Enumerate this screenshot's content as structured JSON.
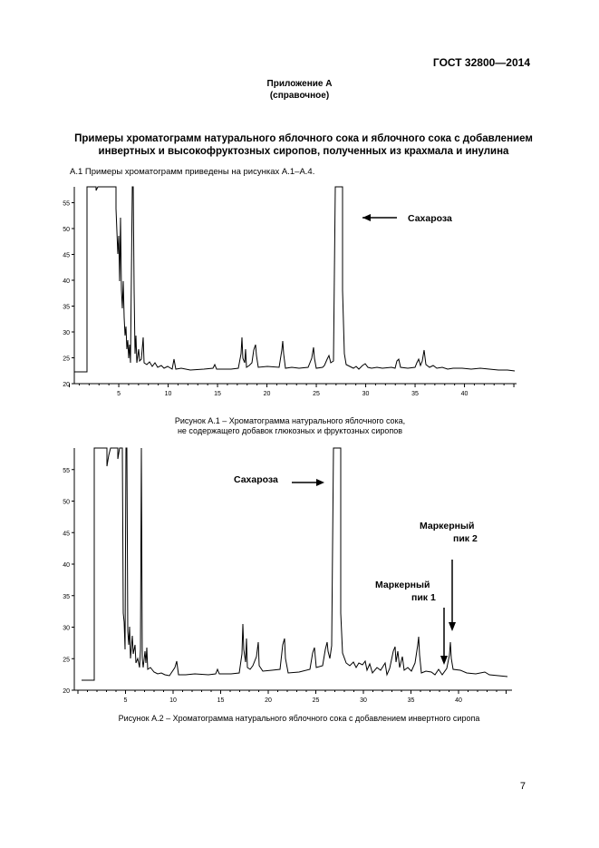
{
  "header": {
    "standard": "ГОСТ 32800—2014"
  },
  "appendix": {
    "line1": "Приложение А",
    "line2": "(справочное)"
  },
  "title": {
    "line1": "Примеры хроматограмм натурального яблочного сока и яблочного сока с добавлением",
    "line2": "инвертных и высокофруктозных сиропов, полученных из крахмала и инулина"
  },
  "intro": "А.1 Примеры хроматограмм приведены на рисунках А.1–А.4.",
  "figure1": {
    "caption_line1": "Рисунок А.1 – Хроматограмма  натурального яблочного сока,",
    "caption_line2": "не содержащего добавок глюкозных и фруктозных сиропов",
    "annotation_sucrose": "Сахароза",
    "y_ticks": [
      "20",
      "25",
      "30",
      "35",
      "40",
      "45",
      "50",
      "55"
    ],
    "x_ticks": [
      "5",
      "10",
      "15",
      "20",
      "25",
      "30",
      "35",
      "40"
    ]
  },
  "figure2": {
    "caption": "Рисунок А.2 – Хроматограмма натурального яблочного сока с добавлением  инвертного сиропа",
    "annotation_sucrose": "Сахароза",
    "marker1_line1": "Маркерный",
    "marker1_line2": "пик 1",
    "marker2_line1": "Маркерный",
    "marker2_line2": "пик 2",
    "y_ticks": [
      "20",
      "25",
      "30",
      "35",
      "40",
      "45",
      "50",
      "55"
    ],
    "x_ticks": [
      "5",
      "10",
      "15",
      "20",
      "25",
      "30",
      "35",
      "40"
    ]
  },
  "page_number": "7"
}
